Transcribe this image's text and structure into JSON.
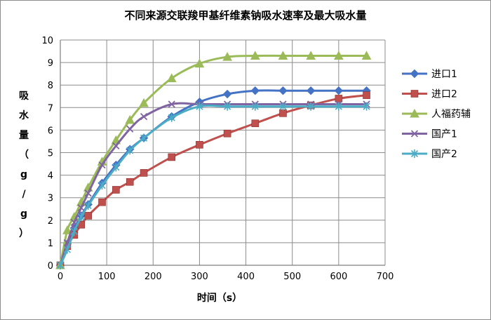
{
  "chart_data": {
    "type": "line",
    "title": "不同来源交联羧甲基纤维素钠吸水速率及最大吸水量",
    "xlabel": "时间（s）",
    "ylabel": "吸水量（g/g）",
    "xlim": [
      0,
      700
    ],
    "ylim": [
      0,
      10
    ],
    "xticks": [
      0,
      100,
      200,
      300,
      400,
      500,
      600,
      700
    ],
    "yticks": [
      0,
      1,
      2,
      3,
      4,
      5,
      6,
      7,
      8,
      9,
      10
    ],
    "grid": true,
    "legend_position": "right",
    "series": [
      {
        "name": "进口1",
        "color": "#4472C4",
        "marker": "diamond",
        "x": [
          0,
          15,
          30,
          45,
          60,
          90,
          120,
          150,
          180,
          240,
          300,
          360,
          420,
          480,
          540,
          600,
          660
        ],
        "y": [
          0,
          0.95,
          1.65,
          2.2,
          2.7,
          3.65,
          4.45,
          5.15,
          5.65,
          6.6,
          7.25,
          7.6,
          7.75,
          7.75,
          7.75,
          7.75,
          7.75
        ]
      },
      {
        "name": "进口2",
        "color": "#C0504D",
        "marker": "square",
        "x": [
          0,
          15,
          30,
          45,
          60,
          90,
          120,
          150,
          180,
          240,
          300,
          360,
          420,
          480,
          540,
          600,
          660
        ],
        "y": [
          0,
          0.85,
          1.35,
          1.8,
          2.2,
          2.8,
          3.35,
          3.7,
          4.1,
          4.8,
          5.35,
          5.85,
          6.3,
          6.75,
          7.1,
          7.4,
          7.55
        ]
      },
      {
        "name": "人福药辅",
        "color": "#9BBB59",
        "marker": "triangle",
        "x": [
          0,
          15,
          30,
          45,
          60,
          90,
          120,
          150,
          180,
          240,
          300,
          360,
          420,
          480,
          540,
          600,
          660
        ],
        "y": [
          0,
          1.55,
          2.15,
          2.8,
          3.45,
          4.6,
          5.55,
          6.45,
          7.2,
          8.3,
          8.95,
          9.25,
          9.3,
          9.3,
          9.3,
          9.3,
          9.3
        ]
      },
      {
        "name": "国产1",
        "color": "#8064A2",
        "marker": "x",
        "x": [
          0,
          15,
          30,
          45,
          60,
          90,
          120,
          150,
          180,
          240,
          300,
          360,
          420,
          480,
          540,
          600,
          660
        ],
        "y": [
          0,
          1.0,
          1.9,
          2.55,
          3.2,
          4.45,
          5.3,
          6.05,
          6.6,
          7.15,
          7.15,
          7.15,
          7.15,
          7.15,
          7.15,
          7.15,
          7.15
        ]
      },
      {
        "name": "国产2",
        "color": "#4BACC6",
        "marker": "asterisk",
        "x": [
          0,
          15,
          30,
          45,
          60,
          90,
          120,
          150,
          180,
          240,
          300,
          360,
          420,
          480,
          540,
          600,
          660
        ],
        "y": [
          0,
          0.7,
          1.5,
          2.15,
          2.65,
          3.55,
          4.35,
          5.1,
          5.65,
          6.55,
          7.05,
          7.05,
          7.05,
          7.05,
          7.05,
          7.05,
          7.05
        ]
      }
    ]
  }
}
